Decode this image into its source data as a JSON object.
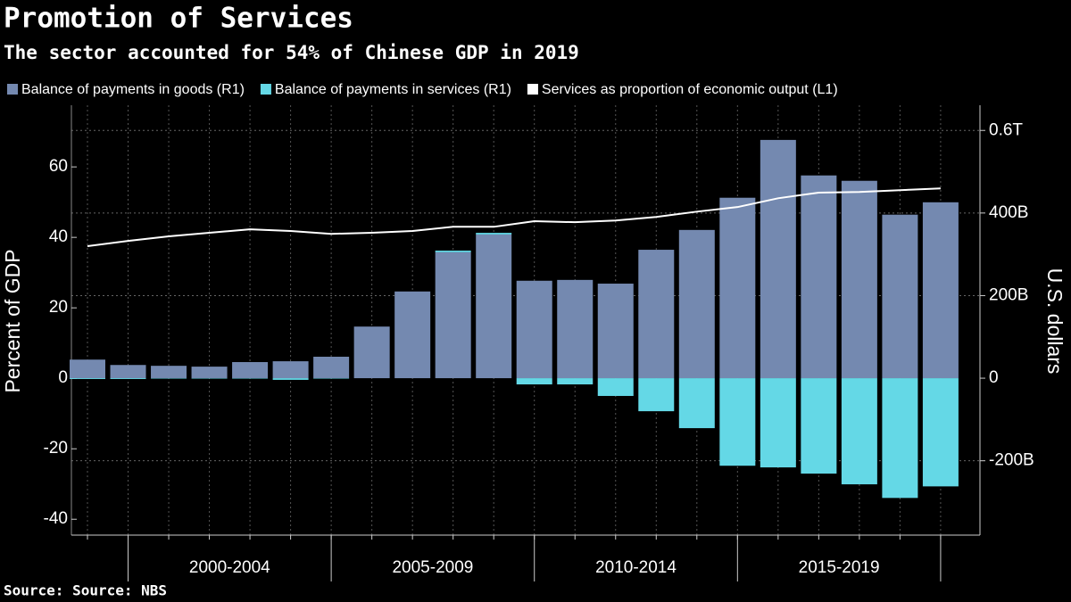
{
  "chart_data": {
    "type": "bar",
    "title": "Promotion of Services",
    "subtitle": "The sector accounted for 54% of Chinese GDP in 2019",
    "source": "Source: Source: NBS",
    "y_label": "Percent of GDP",
    "y2_label": "U.S. dollars",
    "categories": [
      null,
      null,
      null,
      null,
      null,
      null,
      null,
      null,
      null,
      null,
      null,
      null,
      null,
      null,
      null,
      null,
      null,
      null,
      null,
      null,
      null,
      null
    ],
    "x_groups": [
      "2000-2004",
      "2005-2009",
      "2010-2014",
      "2015-2019"
    ],
    "ylim": [
      -44.5,
      77.5
    ],
    "yticks": [
      -40,
      -20,
      0,
      20,
      40,
      60
    ],
    "y2lim": [
      -380,
      661
    ],
    "y2ticks": [
      {
        "value": -200,
        "label": "-200B"
      },
      0,
      {
        "value": 200,
        "label": "200B"
      },
      {
        "value": 400,
        "label": "400B"
      },
      {
        "value": 600,
        "label": "0.6T"
      }
    ],
    "grid": true,
    "series": [
      {
        "name": "Balance of payments in goods (R1)",
        "color": "#7489b0",
        "axis": "y2",
        "type": "bar",
        "values": [
          45,
          32,
          30,
          28,
          39,
          41,
          52,
          125,
          210,
          305,
          348,
          236,
          238,
          229,
          311,
          359,
          437,
          577,
          491,
          478,
          396,
          426
        ]
      },
      {
        "name": "Balance of payments in services (R1)",
        "color": "#64d8e6",
        "axis": "y2",
        "type": "bar",
        "values": [
          -2,
          -2,
          -1,
          -1,
          -1,
          -4,
          -1,
          0,
          0,
          4,
          4,
          -15,
          -15,
          -43,
          -80,
          -121,
          -212,
          -216,
          -231,
          -257,
          -290,
          -262
        ]
      },
      {
        "name": "Services as proportion of economic output (L1)",
        "color": "#ffffff",
        "type": "line",
        "values": [
          37.5,
          39,
          40.3,
          41.3,
          42.3,
          41.8,
          41,
          41.3,
          41.8,
          43,
          43,
          44.6,
          44.3,
          44.8,
          45.8,
          47.3,
          48.6,
          51.1,
          52.7,
          52.9,
          53.4,
          53.9
        ]
      }
    ]
  }
}
